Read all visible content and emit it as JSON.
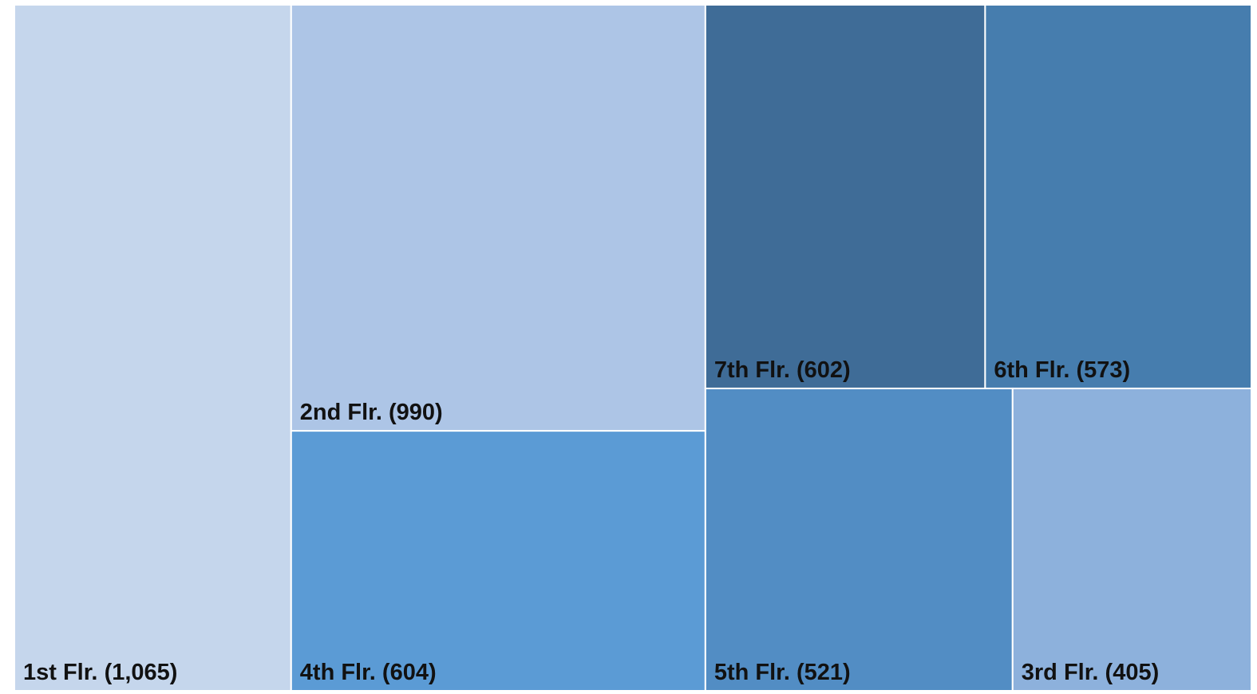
{
  "chart_data": {
    "type": "treemap",
    "categories": [
      "1st Flr.",
      "2nd Flr.",
      "4th Flr.",
      "7th Flr.",
      "6th Flr.",
      "5th Flr.",
      "3rd Flr."
    ],
    "values": [
      1065,
      990,
      604,
      602,
      573,
      521,
      405
    ],
    "value_labels": [
      "(1,065)",
      "(990)",
      "(604)",
      "(602)",
      "(573)",
      "(521)",
      "(405)"
    ],
    "colors": [
      "#c5d6ec",
      "#adc5e6",
      "#5b9bd5",
      "#3f6c97",
      "#467dae",
      "#528dc4",
      "#8db1dc"
    ]
  }
}
